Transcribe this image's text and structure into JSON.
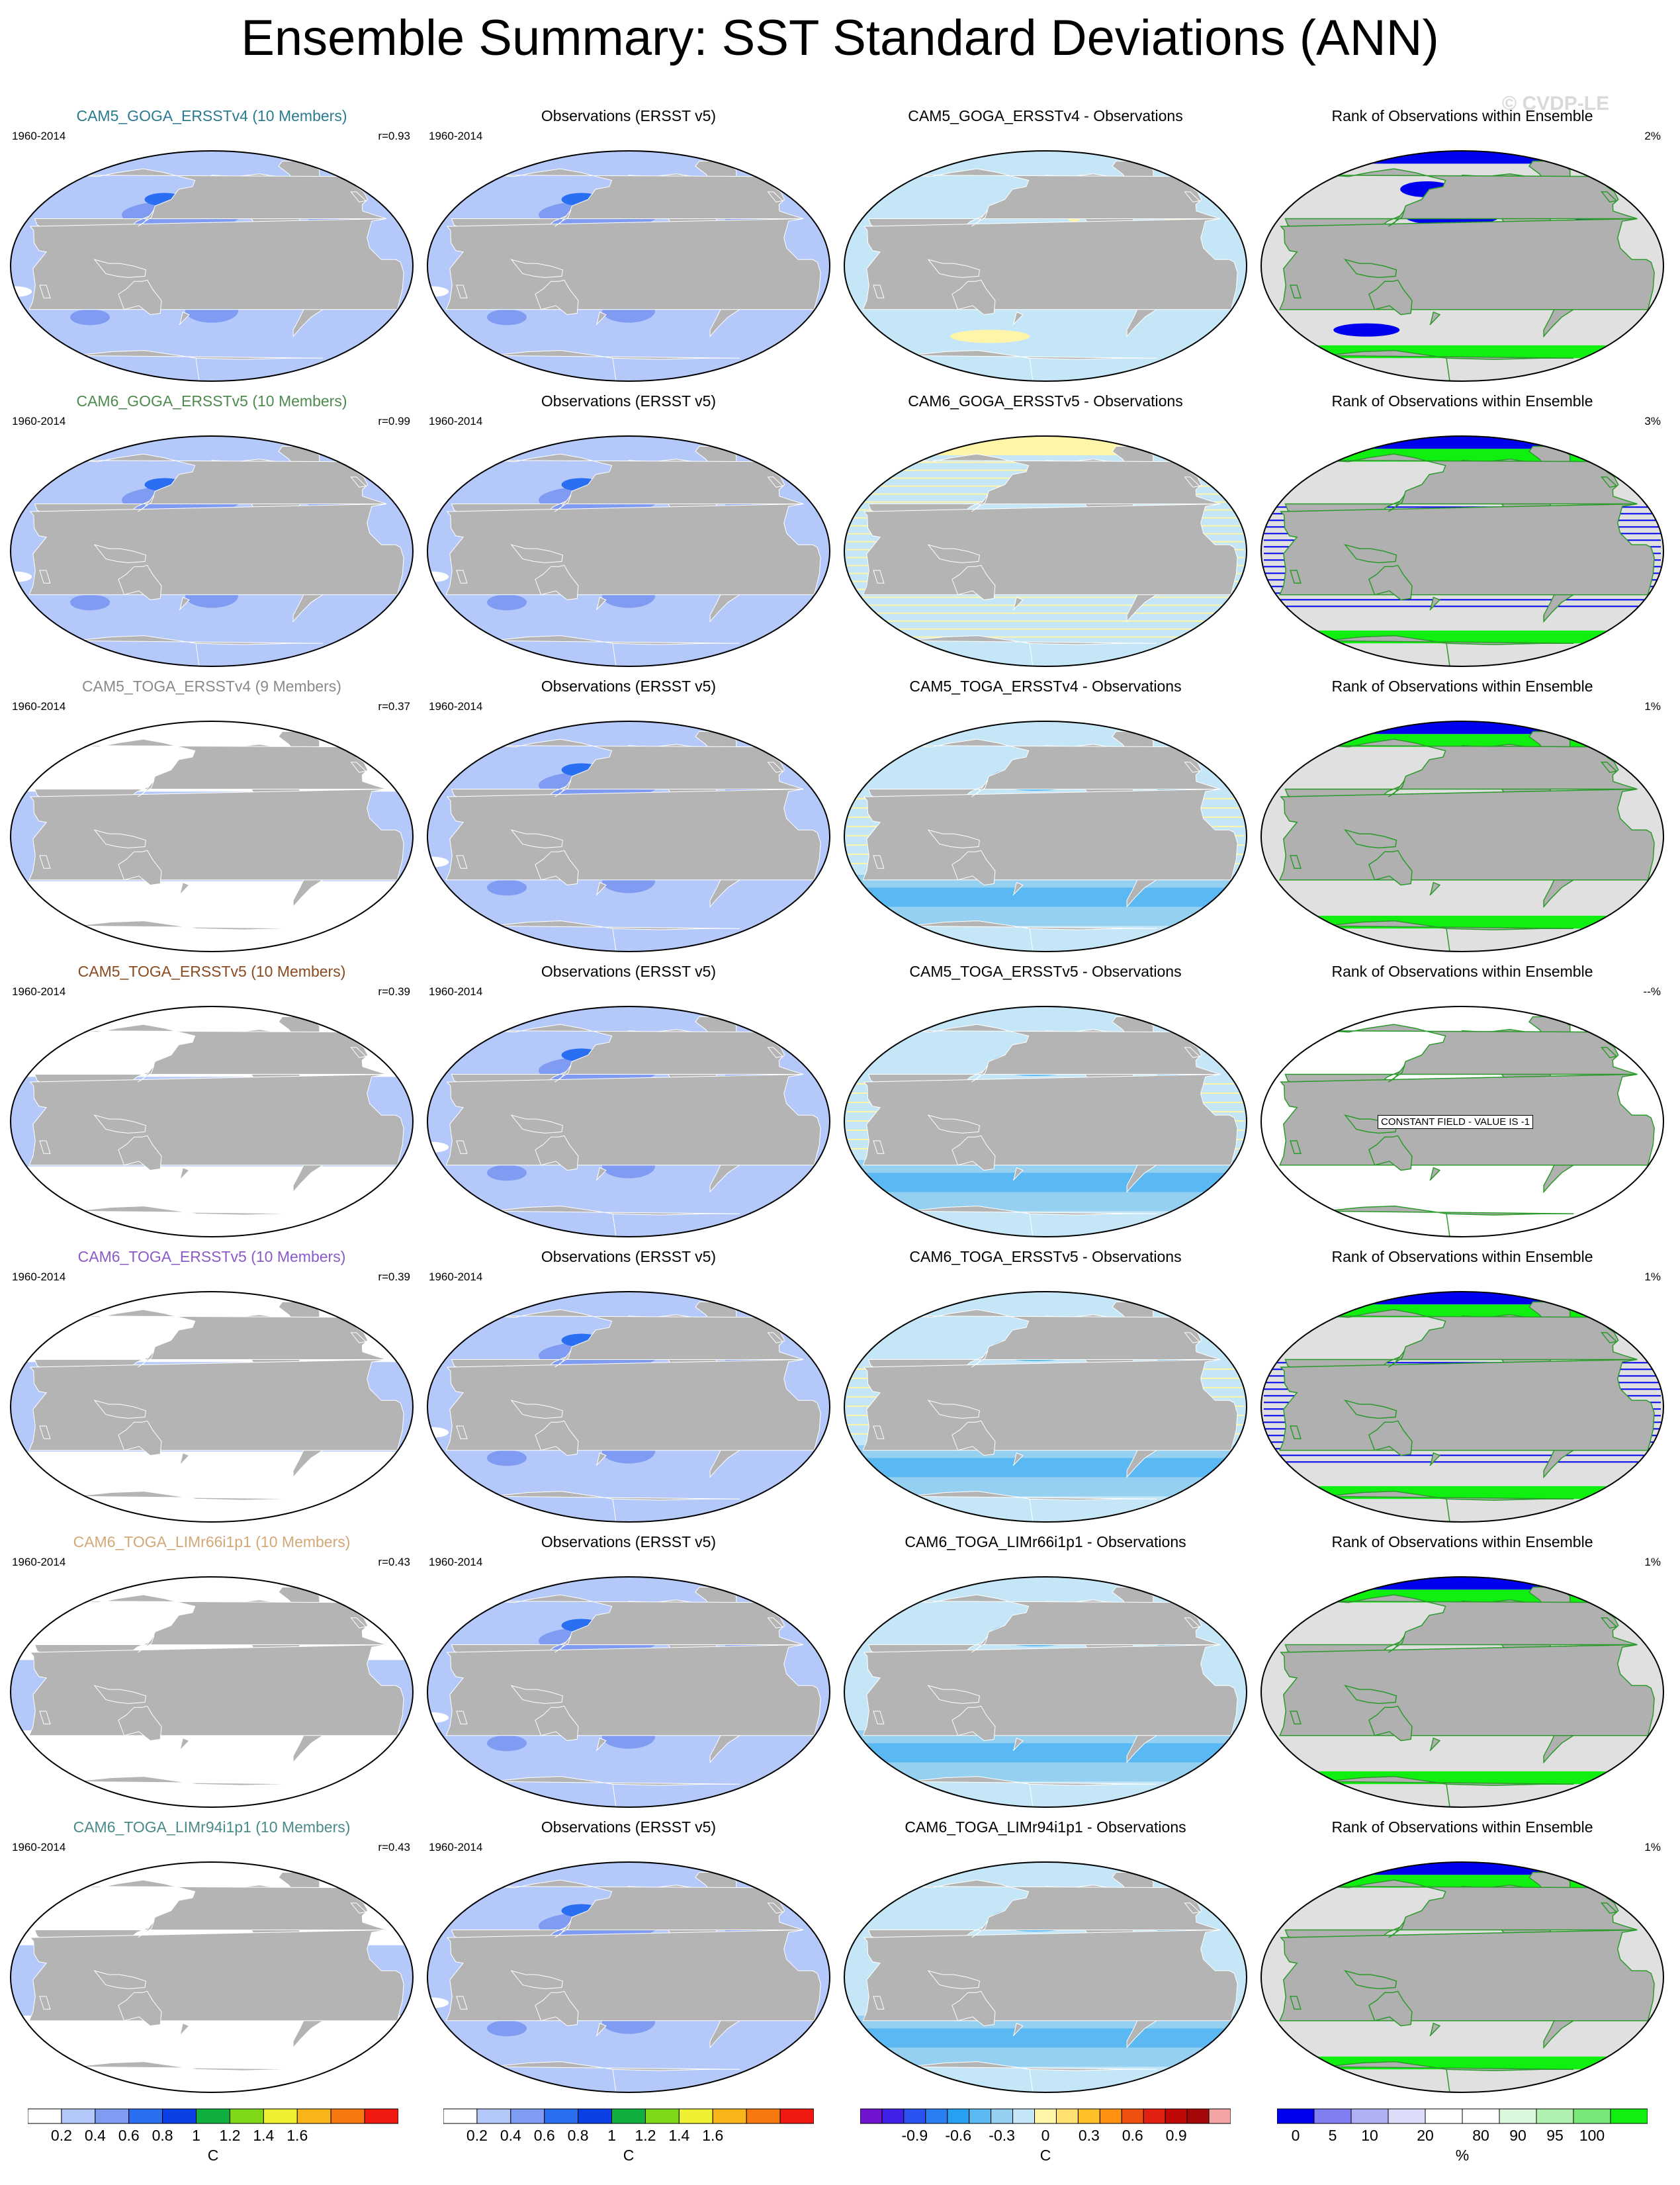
{
  "title": "Ensemble Summary: SST Standard Deviations (ANN)",
  "watermark": "© CVDP-LE",
  "rows": [
    {
      "model_title": "CAM5_GOGA_ERSSTv4 (10 Members)",
      "model_title_color": "#2a7a90",
      "period": "1960-2014",
      "r": "r=0.93",
      "obs_title": "Observations (ERSST v5)",
      "obs_period": "1960-2014",
      "diff_title": "CAM5_GOGA_ERSSTv4 - Observations",
      "rank_title": "Rank of Observations within Ensemble",
      "rank_pct": "2%",
      "model_field": "light",
      "diff_field": "mixed",
      "rank_field": "goga"
    },
    {
      "model_title": "CAM6_GOGA_ERSSTv5 (10 Members)",
      "model_title_color": "#4e8a4e",
      "period": "1960-2014",
      "r": "r=0.99",
      "obs_title": "Observations (ERSST v5)",
      "obs_period": "1960-2014",
      "diff_title": "CAM6_GOGA_ERSSTv5 - Observations",
      "rank_title": "Rank of Observations within Ensemble",
      "rank_pct": "3%",
      "model_field": "light",
      "diff_field": "striped",
      "rank_field": "striped"
    },
    {
      "model_title": "CAM5_TOGA_ERSSTv4 (9 Members)",
      "model_title_color": "#8a8a8a",
      "period": "1960-2014",
      "r": "r=0.37",
      "obs_title": "Observations (ERSST v5)",
      "obs_period": "1960-2014",
      "diff_title": "CAM5_TOGA_ERSSTv4 - Observations",
      "rank_title": "Rank of Observations within Ensemble",
      "rank_pct": "1%",
      "model_field": "toga",
      "diff_field": "toga",
      "rank_field": "toga"
    },
    {
      "model_title": "CAM5_TOGA_ERSSTv5 (10 Members)",
      "model_title_color": "#8a4a20",
      "period": "1960-2014",
      "r": "r=0.39",
      "obs_title": "Observations (ERSST v5)",
      "obs_period": "1960-2014",
      "diff_title": "CAM5_TOGA_ERSSTv5 - Observations",
      "rank_title": "Rank of Observations within Ensemble",
      "rank_pct": "--%",
      "rank_note": "CONSTANT FIELD - VALUE IS -1",
      "model_field": "toga",
      "diff_field": "toga",
      "rank_field": "constant"
    },
    {
      "model_title": "CAM6_TOGA_ERSSTv5 (10 Members)",
      "model_title_color": "#8a5ac8",
      "period": "1960-2014",
      "r": "r=0.39",
      "obs_title": "Observations (ERSST v5)",
      "obs_period": "1960-2014",
      "diff_title": "CAM6_TOGA_ERSSTv5 - Observations",
      "rank_title": "Rank of Observations within Ensemble",
      "rank_pct": "1%",
      "model_field": "toga",
      "diff_field": "toga",
      "rank_field": "striped2"
    },
    {
      "model_title": "CAM6_TOGA_LIMr66i1p1 (10 Members)",
      "model_title_color": "#d2a878",
      "period": "1960-2014",
      "r": "r=0.43",
      "obs_title": "Observations (ERSST v5)",
      "obs_period": "1960-2014",
      "diff_title": "CAM6_TOGA_LIMr66i1p1 - Observations",
      "rank_title": "Rank of Observations within Ensemble",
      "rank_pct": "1%",
      "model_field": "lim",
      "diff_field": "lim",
      "rank_field": "lim"
    },
    {
      "model_title": "CAM6_TOGA_LIMr94i1p1 (10 Members)",
      "model_title_color": "#4a8a8a",
      "period": "1960-2014",
      "r": "r=0.43",
      "obs_title": "Observations (ERSST v5)",
      "obs_period": "1960-2014",
      "diff_title": "CAM6_TOGA_LIMr94i1p1 - Observations",
      "rank_title": "Rank of Observations within Ensemble",
      "rank_pct": "1%",
      "model_field": "lim",
      "diff_field": "lim2",
      "rank_field": "lim"
    }
  ],
  "colorbars": [
    {
      "name": "model-sst-std",
      "unit": "C",
      "colors": [
        "#ffffff",
        "#b4c8fa",
        "#7f9cf2",
        "#2a6ef2",
        "#0a40e6",
        "#10b040",
        "#7ed818",
        "#f0f032",
        "#f8b418",
        "#f87810",
        "#f01810"
      ],
      "labels": [
        "0.2",
        "0.4",
        "0.6",
        "0.8",
        "1",
        "1.2",
        "1.4",
        "1.6"
      ]
    },
    {
      "name": "obs-sst-std",
      "unit": "C",
      "colors": [
        "#ffffff",
        "#b4c8fa",
        "#7f9cf2",
        "#2a6ef2",
        "#0a40e6",
        "#10b040",
        "#7ed818",
        "#f0f032",
        "#f8b418",
        "#f87810",
        "#f01810"
      ],
      "labels": [
        "0.2",
        "0.4",
        "0.6",
        "0.8",
        "1",
        "1.2",
        "1.4",
        "1.6"
      ]
    },
    {
      "name": "difference",
      "unit": "C",
      "colors": [
        "#7014d0",
        "#4020e6",
        "#2a52f2",
        "#2a7ef2",
        "#28a0f2",
        "#5ab8f2",
        "#96d0f0",
        "#c4e6f6",
        "#fff5a8",
        "#ffe070",
        "#ffc028",
        "#ff9010",
        "#f05010",
        "#e02010",
        "#c00808",
        "#a40808",
        "#f4a4a4"
      ],
      "labels": [
        "-0.9",
        "-0.6",
        "-0.3",
        "0",
        "0.3",
        "0.6",
        "0.9"
      ]
    },
    {
      "name": "rank",
      "unit": "%",
      "colors": [
        "#0000f0",
        "#7f7ff2",
        "#b0b0f6",
        "#dcdcfa",
        "#ffffff",
        "#ffffff",
        "#dcf8dc",
        "#b0f0b0",
        "#78e878",
        "#10f010"
      ],
      "labels": [
        "0",
        "5",
        "10",
        "20",
        "80",
        "90",
        "95",
        "100"
      ]
    }
  ]
}
